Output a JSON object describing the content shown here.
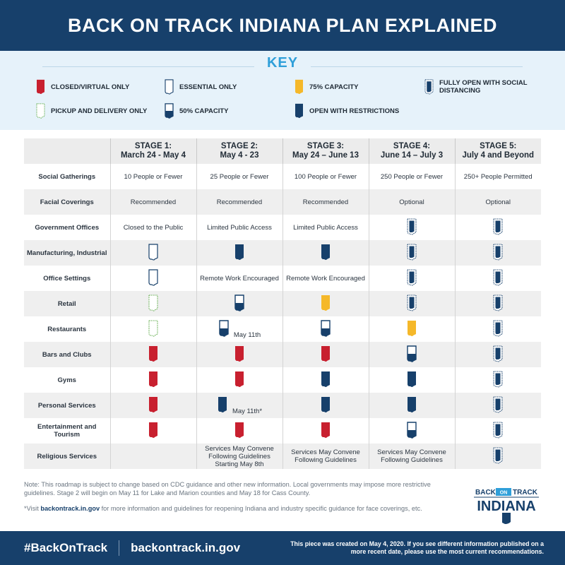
{
  "header": {
    "title": "BACK ON TRACK INDIANA PLAN EXPLAINED"
  },
  "key": {
    "title": "KEY",
    "items": {
      "closed": {
        "label": "CLOSED/VIRTUAL ONLY",
        "icon": "red-indiana-icon"
      },
      "essential": {
        "label": "ESSENTIAL ONLY",
        "icon": "outline-indiana-icon"
      },
      "capacity75": {
        "label": "75% CAPACITY",
        "icon": "yellow-indiana-icon"
      },
      "fully_open": {
        "label": "FULLY OPEN WITH SOCIAL DISTANCING",
        "icon": "dotted-navy-indiana-icon"
      },
      "pickup": {
        "label": "PICKUP AND DELIVERY ONLY",
        "icon": "green-dotted-indiana-icon"
      },
      "capacity50": {
        "label": "50% CAPACITY",
        "icon": "half-navy-indiana-icon"
      },
      "restrictions": {
        "label": "OPEN WITH RESTRICTIONS",
        "icon": "navy-indiana-icon"
      }
    }
  },
  "colors": {
    "navy": "#17406b",
    "red": "#c8202f",
    "yellow": "#f5b82a",
    "green": "#5aa844",
    "blue": "#2f9fd9"
  },
  "table": {
    "stages": [
      {
        "line1": "STAGE 1:",
        "line2": "March 24 - May 4"
      },
      {
        "line1": "STAGE 2:",
        "line2": "May 4 - 23"
      },
      {
        "line1": "STAGE 3:",
        "line2": "May 24 – June 13"
      },
      {
        "line1": "STAGE 4:",
        "line2": "June 14 – July 3"
      },
      {
        "line1": "STAGE 5:",
        "line2": "July 4 and Beyond"
      }
    ],
    "rows": [
      {
        "label": "Social Gatherings",
        "cells": [
          {
            "text": "10 People or Fewer"
          },
          {
            "text": "25 People or Fewer"
          },
          {
            "text": "100 People or Fewer"
          },
          {
            "text": "250 People or Fewer"
          },
          {
            "text": "250+ People Permitted"
          }
        ]
      },
      {
        "label": "Facial Coverings",
        "cells": [
          {
            "text": "Recommended"
          },
          {
            "text": "Recommended"
          },
          {
            "text": "Recommended"
          },
          {
            "text": "Optional"
          },
          {
            "text": "Optional"
          }
        ]
      },
      {
        "label": "Government Offices",
        "cells": [
          {
            "text": "Closed to the Public"
          },
          {
            "text": "Limited Public Access"
          },
          {
            "text": "Limited Public Access"
          },
          {
            "icon": "fully_open"
          },
          {
            "icon": "fully_open"
          }
        ]
      },
      {
        "label": "Manufacturing, Industrial",
        "cells": [
          {
            "icon": "essential"
          },
          {
            "icon": "restrictions"
          },
          {
            "icon": "restrictions"
          },
          {
            "icon": "fully_open"
          },
          {
            "icon": "fully_open"
          }
        ]
      },
      {
        "label": "Office Settings",
        "cells": [
          {
            "icon": "essential"
          },
          {
            "text": "Remote Work Encouraged"
          },
          {
            "text": "Remote Work Encouraged"
          },
          {
            "icon": "fully_open"
          },
          {
            "icon": "fully_open"
          }
        ]
      },
      {
        "label": "Retail",
        "cells": [
          {
            "icon": "pickup"
          },
          {
            "icon": "capacity50"
          },
          {
            "icon": "capacity75"
          },
          {
            "icon": "fully_open"
          },
          {
            "icon": "fully_open"
          }
        ]
      },
      {
        "label": "Restaurants",
        "cells": [
          {
            "icon": "pickup"
          },
          {
            "icon": "capacity50",
            "note": "May 11th"
          },
          {
            "icon": "capacity50"
          },
          {
            "icon": "capacity75"
          },
          {
            "icon": "fully_open"
          }
        ]
      },
      {
        "label": "Bars and Clubs",
        "cells": [
          {
            "icon": "closed"
          },
          {
            "icon": "closed"
          },
          {
            "icon": "closed"
          },
          {
            "icon": "capacity50"
          },
          {
            "icon": "fully_open"
          }
        ]
      },
      {
        "label": "Gyms",
        "cells": [
          {
            "icon": "closed"
          },
          {
            "icon": "closed"
          },
          {
            "icon": "restrictions"
          },
          {
            "icon": "restrictions"
          },
          {
            "icon": "fully_open"
          }
        ]
      },
      {
        "label": "Personal Services",
        "cells": [
          {
            "icon": "closed"
          },
          {
            "icon": "restrictions",
            "note": "May 11th*"
          },
          {
            "icon": "restrictions"
          },
          {
            "icon": "restrictions"
          },
          {
            "icon": "fully_open"
          }
        ]
      },
      {
        "label": "Entertainment and Tourism",
        "cells": [
          {
            "icon": "closed"
          },
          {
            "icon": "closed"
          },
          {
            "icon": "closed"
          },
          {
            "icon": "capacity50"
          },
          {
            "icon": "fully_open"
          }
        ]
      },
      {
        "label": "Religious Services",
        "cells": [
          {
            "text": ""
          },
          {
            "text": "Services May Convene Following Guidelines Starting May 8th"
          },
          {
            "text": "Services May Convene Following Guidelines"
          },
          {
            "text": "Services May Convene Following Guidelines"
          },
          {
            "icon": "fully_open"
          }
        ]
      }
    ]
  },
  "notes": {
    "note1": "Note: This roadmap is subject to change based on CDC guidance and other new information. Local governments may impose more restrictive guidelines. Stage 2 will begin on May 11 for Lake and Marion counties and May 18 for Cass County.",
    "note2_pre": "*Visit ",
    "note2_link": "backontrack.in.gov",
    "note2_post": " for more information and guidelines for reopening Indiana and industry specific guidance for face coverings, etc."
  },
  "logo": {
    "line1_left": "BACK",
    "line1_mid": "ON",
    "line1_right": "TRACK",
    "line2": "INDIANA"
  },
  "footer": {
    "hashtag": "#BackOnTrack",
    "url": "backontrack.in.gov",
    "note": "This piece was created on May 4, 2020. If you see different information published on a more recent date, please use the most current recommendations."
  }
}
